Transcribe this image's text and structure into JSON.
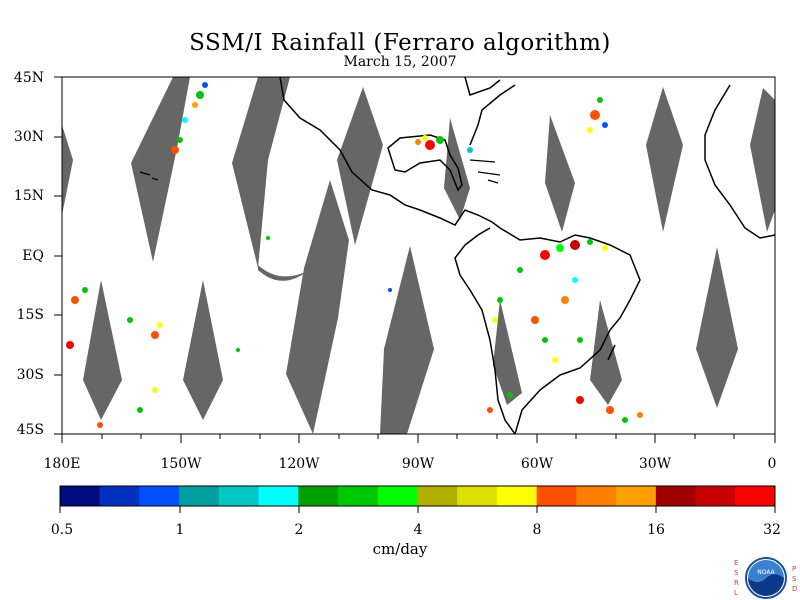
{
  "title": "SSM/I Rainfall (Ferraro algorithm)",
  "subtitle": "March 15, 2007",
  "lat_labels": [
    "45N",
    "30N",
    "15N",
    "EQ",
    "15S",
    "30S",
    "45S"
  ],
  "lat_values": [
    45,
    30,
    15,
    0,
    -15,
    -30,
    -45
  ],
  "lon_labels": [
    "180E",
    "150W",
    "120W",
    "90W",
    "60W",
    "30W",
    "0"
  ],
  "lon_values": [
    -180,
    -150,
    -120,
    -90,
    -60,
    -30,
    0
  ],
  "extent": {
    "lon": [
      -180,
      0
    ],
    "lat": [
      -45,
      45
    ]
  },
  "colorbar": {
    "tick_labels": [
      "0.5",
      "1",
      "2",
      "4",
      "8",
      "16",
      "32"
    ],
    "units": "cm/day",
    "colors": [
      "#000c80",
      "#0030c0",
      "#0050ff",
      "#00a0a0",
      "#00c8c8",
      "#00ffff",
      "#00a000",
      "#00c800",
      "#00ff00",
      "#b0b000",
      "#e0e000",
      "#ffff00",
      "#ff5000",
      "#ff8000",
      "#ffa000",
      "#a00000",
      "#c80000",
      "#ff0000"
    ]
  },
  "no_data_color": "#666666",
  "logo": {
    "left_text": [
      "E",
      "S",
      "R",
      "L"
    ],
    "right_text": [
      "P",
      "S",
      "D"
    ],
    "badge": "NOAA"
  }
}
